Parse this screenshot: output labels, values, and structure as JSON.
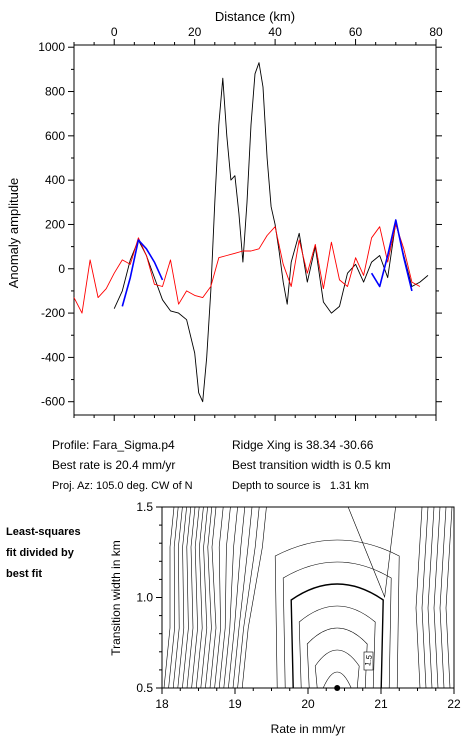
{
  "chart_data": [
    {
      "type": "line",
      "title": "",
      "xlabel": "Distance (km)",
      "ylabel": "Anomaly amplitude",
      "xlim": [
        -10,
        80
      ],
      "ylim": [
        -660,
        1010
      ],
      "x_ticks": [
        0,
        20,
        40,
        60,
        80
      ],
      "y_ticks": [
        -600,
        -400,
        -200,
        0,
        200,
        400,
        600,
        800,
        1000
      ],
      "grid": false,
      "series": [
        {
          "color": "#000000",
          "x": [
            0,
            2,
            4,
            6,
            8,
            10,
            12,
            14,
            16,
            18,
            20,
            21,
            22,
            23,
            24,
            25,
            26,
            27,
            28,
            29,
            30,
            31,
            32,
            33,
            34,
            35,
            36,
            37,
            38,
            39,
            40,
            41,
            42,
            43,
            44,
            46,
            48,
            50,
            52,
            54,
            56,
            58,
            60,
            62,
            64,
            66,
            68,
            70,
            72,
            74,
            76,
            78
          ],
          "y": [
            -180,
            -100,
            40,
            130,
            60,
            -40,
            -140,
            -190,
            -200,
            -230,
            -380,
            -560,
            -600,
            -400,
            -100,
            300,
            650,
            860,
            600,
            400,
            420,
            250,
            30,
            300,
            650,
            880,
            930,
            820,
            500,
            280,
            200,
            80,
            -60,
            -160,
            30,
            160,
            -60,
            100,
            -150,
            -200,
            -170,
            -20,
            20,
            -60,
            30,
            60,
            -40,
            210,
            60,
            -80,
            -60,
            -30
          ]
        },
        {
          "color": "#ff0000",
          "x": [
            -10,
            -8,
            -6,
            -4,
            -2,
            0,
            2,
            4,
            6,
            8,
            10,
            12,
            14,
            16,
            18,
            20,
            22,
            24,
            26,
            28,
            30,
            32,
            34,
            36,
            38,
            40,
            42,
            44,
            46,
            48,
            50,
            52,
            54,
            56,
            58,
            60,
            62,
            64,
            66,
            68,
            70,
            72,
            74,
            76
          ],
          "y": [
            -130,
            -200,
            40,
            -130,
            -90,
            -20,
            40,
            20,
            140,
            60,
            -70,
            -80,
            40,
            -160,
            -100,
            -120,
            -130,
            -80,
            50,
            60,
            70,
            80,
            80,
            90,
            150,
            190,
            20,
            -80,
            130,
            -20,
            110,
            -90,
            120,
            -50,
            -80,
            50,
            -30,
            140,
            190,
            30,
            200,
            90,
            -60,
            -80
          ]
        },
        {
          "color": "#0000ff",
          "x": [
            2,
            4,
            6,
            8,
            10,
            12
          ],
          "y": [
            -170,
            -40,
            130,
            90,
            30,
            -50
          ]
        },
        {
          "color": "#0000ff",
          "x": [
            64,
            66,
            68,
            70,
            72,
            74
          ],
          "y": [
            -20,
            -80,
            60,
            220,
            50,
            -100
          ]
        }
      ]
    },
    {
      "type": "contour",
      "xlabel": "Rate in mm/yr",
      "ylabel": "Transition width in km",
      "xlim": [
        18,
        22
      ],
      "ylim": [
        0.5,
        1.5
      ],
      "x_ticks": [
        18,
        19,
        20,
        21,
        22
      ],
      "y_ticks": [
        0.5,
        1.0,
        1.5
      ],
      "contour_label": "1.5",
      "best_fit_point": {
        "x": 20.4,
        "y": 0.5
      }
    }
  ],
  "info": {
    "profile": "Profile: Fara_Sigma.p4",
    "ridge": "Ridge Xing is 38.34 -30.66",
    "best_rate": "Best rate is 20.4 mm/yr",
    "best_width": "Best transition width is 0.5 km",
    "proj": "Proj. Az: 105.0 deg. CW of N",
    "depth": "Depth to source is   1.31 km"
  },
  "side_note": [
    "Least-squares",
    "fit divided by",
    "best fit"
  ]
}
